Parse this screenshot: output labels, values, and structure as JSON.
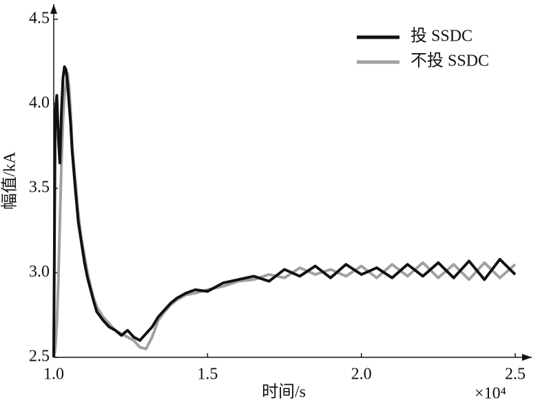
{
  "chart_data": {
    "type": "line",
    "xlabel": "时间/s",
    "ylabel": "幅值/kA",
    "x_multiplier": "×10⁴",
    "x": [
      1.0,
      1.005,
      1.01,
      1.015,
      1.02,
      1.025,
      1.03,
      1.035,
      1.04,
      1.045,
      1.05,
      1.055,
      1.06,
      1.07,
      1.08,
      1.09,
      1.1,
      1.11,
      1.12,
      1.13,
      1.14,
      1.16,
      1.18,
      1.2,
      1.22,
      1.24,
      1.26,
      1.28,
      1.3,
      1.32,
      1.34,
      1.36,
      1.38,
      1.4,
      1.43,
      1.46,
      1.5,
      1.55,
      1.6,
      1.65,
      1.7,
      1.75,
      1.8,
      1.85,
      1.9,
      1.95,
      2.0,
      2.05,
      2.1,
      2.15,
      2.2,
      2.25,
      2.3,
      2.35,
      2.4,
      2.45,
      2.5
    ],
    "series": [
      {
        "name": "投 SSDC",
        "color": "#111111",
        "values": [
          2.5,
          3.95,
          4.05,
          3.8,
          3.65,
          3.95,
          4.15,
          4.22,
          4.2,
          4.12,
          4.0,
          3.88,
          3.72,
          3.5,
          3.3,
          3.18,
          3.06,
          2.97,
          2.9,
          2.83,
          2.77,
          2.72,
          2.68,
          2.66,
          2.63,
          2.66,
          2.62,
          2.6,
          2.64,
          2.68,
          2.74,
          2.78,
          2.82,
          2.85,
          2.88,
          2.9,
          2.89,
          2.94,
          2.96,
          2.98,
          2.95,
          3.02,
          2.98,
          3.04,
          2.97,
          3.05,
          2.99,
          3.03,
          2.97,
          3.05,
          2.98,
          3.06,
          2.97,
          3.07,
          2.96,
          3.08,
          2.99
        ]
      },
      {
        "name": "不投 SSDC",
        "color": "#a0a0a0",
        "values": [
          2.5,
          2.55,
          2.7,
          2.95,
          3.3,
          3.65,
          3.9,
          4.05,
          4.12,
          4.18,
          4.1,
          3.95,
          3.75,
          3.55,
          3.35,
          3.2,
          3.1,
          3.0,
          2.92,
          2.85,
          2.8,
          2.74,
          2.7,
          2.66,
          2.64,
          2.62,
          2.6,
          2.56,
          2.55,
          2.62,
          2.72,
          2.77,
          2.81,
          2.84,
          2.87,
          2.88,
          2.9,
          2.92,
          2.95,
          2.96,
          2.99,
          2.97,
          3.03,
          2.99,
          3.02,
          2.98,
          3.04,
          2.97,
          3.05,
          2.98,
          3.06,
          2.97,
          3.05,
          2.96,
          3.06,
          2.97,
          3.05
        ]
      }
    ],
    "xlim": [
      1.0,
      2.5
    ],
    "xticks": [
      {
        "value": 1,
        "label": "1.0"
      },
      1.5,
      {
        "value": 2,
        "label": "2.0"
      },
      2.5
    ],
    "ylim": [
      2.5,
      4.5
    ],
    "yticks": [
      2.5,
      {
        "value": 3,
        "label": "3.0"
      },
      3.5,
      {
        "value": 4,
        "label": "4.0"
      },
      4.5
    ],
    "grid": false,
    "legend": "upper right"
  }
}
